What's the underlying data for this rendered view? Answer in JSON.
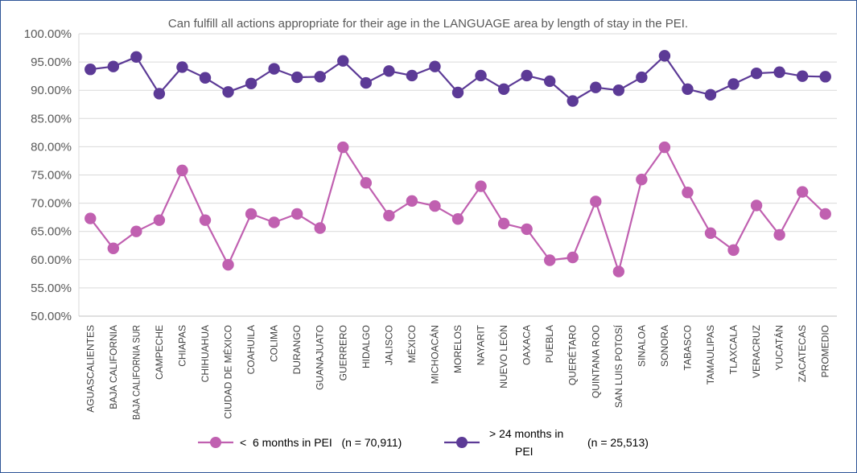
{
  "chart_data": {
    "type": "line",
    "title": "Can fulfill all actions appropriate for their age in the LANGUAGE area by length of stay in the PEI.",
    "xlabel": "",
    "ylabel": "",
    "ylim": [
      50,
      100
    ],
    "yticks": [
      "100.00%",
      "95.00%",
      "90.00%",
      "85.00%",
      "80.00%",
      "75.00%",
      "70.00%",
      "65.00%",
      "60.00%",
      "55.00%",
      "50.00%"
    ],
    "ytick_values": [
      100,
      95,
      90,
      85,
      80,
      75,
      70,
      65,
      60,
      55,
      50
    ],
    "grid": true,
    "categories": [
      "AGUASCALIENTES",
      "BAJA CALIFORNIA",
      "BAJA CALIFORNIA SUR",
      "CAMPECHE",
      "CHIAPAS",
      "CHIHUAHUA",
      "CIUDAD DE MÉXICO",
      "COAHUILA",
      "COLIMA",
      "DURANGO",
      "GUANAJUATO",
      "GUERRERO",
      "HIDALGO",
      "JALISCO",
      "MÉXICO",
      "MICHOACÁN",
      "MORELOS",
      "NAYARIT",
      "NUEVO LEÓN",
      "OAXACA",
      "PUEBLA",
      "QUERÉTARO",
      "QUINTANA ROO",
      "SAN LUIS POTOSÍ",
      "SINALOA",
      "SONORA",
      "TABASCO",
      "TAMAULIPAS",
      "TLAXCALA",
      "VERACRUZ",
      "YUCATÁN",
      "ZACATECAS",
      "PROMEDIO"
    ],
    "series": [
      {
        "name": "< 6 months in PEI",
        "n_label": "(n = 70,911)",
        "color": "#c060b0",
        "values": [
          67.3,
          62.0,
          65.0,
          67.0,
          75.8,
          67.0,
          59.1,
          68.1,
          66.6,
          68.1,
          65.6,
          79.9,
          73.6,
          67.8,
          70.4,
          69.5,
          67.2,
          73.0,
          66.4,
          65.4,
          59.9,
          60.4,
          70.3,
          57.9,
          74.2,
          79.9,
          71.9,
          64.7,
          61.7,
          69.6,
          64.4,
          72.0,
          68.1
        ]
      },
      {
        "name": "> 24 months in PEI",
        "n_label": "(n = 25,513)",
        "color": "#5c3a96",
        "values": [
          93.7,
          94.2,
          95.9,
          89.4,
          94.1,
          92.2,
          89.7,
          91.2,
          93.8,
          92.3,
          92.4,
          95.2,
          91.3,
          93.4,
          92.6,
          94.2,
          89.6,
          92.6,
          90.2,
          92.6,
          91.6,
          88.1,
          90.5,
          90.0,
          92.3,
          96.1,
          90.2,
          89.2,
          91.1,
          93.0,
          93.2,
          92.5,
          92.4
        ]
      }
    ],
    "legend": {
      "position": "bottom",
      "item1_label": "<  6 months in PEI   (n = 70,911)",
      "item2_label_line1": "> 24 months in",
      "item2_label_line2": "PEI",
      "item2_n": "(n = 25,513)"
    }
  }
}
